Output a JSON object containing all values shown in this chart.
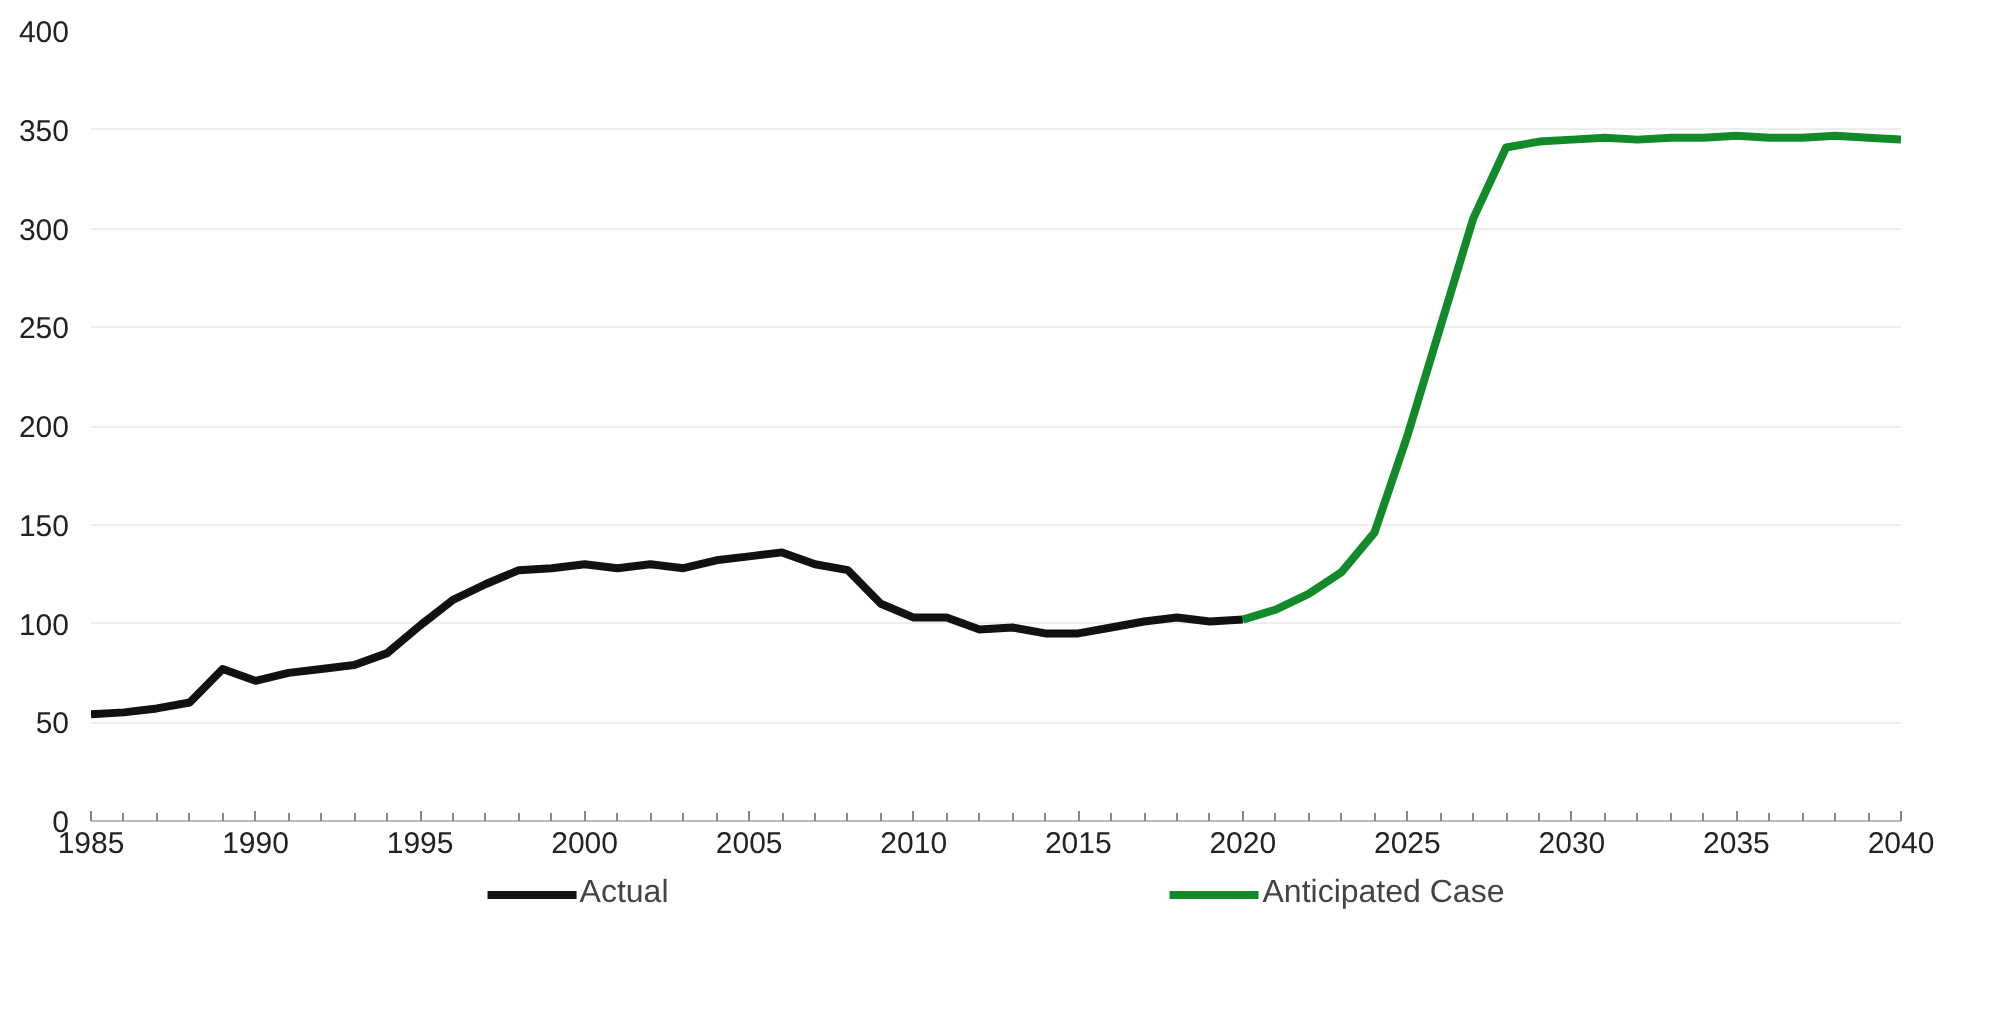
{
  "chart_data": {
    "type": "line",
    "x": [
      1985,
      1986,
      1987,
      1988,
      1989,
      1990,
      1991,
      1992,
      1993,
      1994,
      1995,
      1996,
      1997,
      1998,
      1999,
      2000,
      2001,
      2002,
      2003,
      2004,
      2005,
      2006,
      2007,
      2008,
      2009,
      2010,
      2011,
      2012,
      2013,
      2014,
      2015,
      2016,
      2017,
      2018,
      2019,
      2020
    ],
    "series": [
      {
        "name": "Actual",
        "color": "#111111",
        "values": [
          54,
          55,
          57,
          60,
          77,
          71,
          75,
          77,
          79,
          85,
          99,
          112,
          120,
          127,
          128,
          130,
          128,
          130,
          128,
          132,
          134,
          136,
          130,
          127,
          110,
          103,
          103,
          97,
          98,
          95,
          95,
          98,
          101,
          103,
          101,
          102
        ]
      },
      {
        "name": "Anticipated Case",
        "color": "#138a2a",
        "x": [
          2020,
          2021,
          2022,
          2023,
          2024,
          2025,
          2026,
          2027,
          2028,
          2029,
          2030,
          2031,
          2032,
          2033,
          2034,
          2035,
          2036,
          2037,
          2038,
          2039,
          2040
        ],
        "values": [
          102,
          107,
          115,
          126,
          146,
          195,
          250,
          305,
          341,
          344,
          345,
          346,
          345,
          346,
          346,
          347,
          346,
          346,
          347,
          346,
          345
        ]
      }
    ],
    "xlim": [
      1985,
      2040
    ],
    "xticks": [
      1985,
      1990,
      1995,
      2000,
      2005,
      2010,
      2015,
      2020,
      2025,
      2030,
      2035,
      2040
    ],
    "ylim": [
      0,
      400
    ],
    "yticks": [
      0,
      50,
      100,
      150,
      200,
      250,
      300,
      350,
      400
    ],
    "grid": "y",
    "legend": "bottom",
    "marker": "none",
    "line_style": "solid"
  }
}
